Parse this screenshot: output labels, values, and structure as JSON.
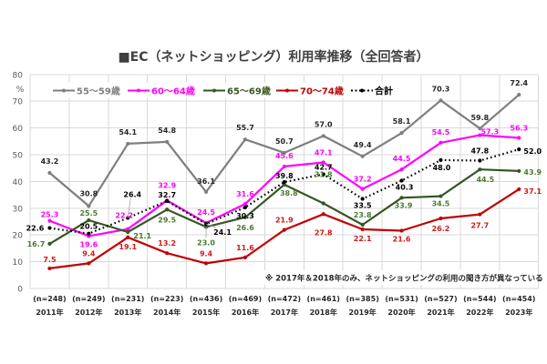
{
  "chart_data": {
    "type": "line",
    "title": "■EC（ネットショッピング）利用率推移（全回答者）",
    "xlabel": "",
    "ylabel": "%",
    "ylim": [
      0,
      80
    ],
    "yticks": [
      0,
      10,
      20,
      30,
      40,
      50,
      60,
      70,
      80
    ],
    "grid": true,
    "legend": "top-left",
    "categories": [
      "2011年",
      "2012年",
      "2013年",
      "2014年",
      "2015年",
      "2016年",
      "2017年",
      "2018年",
      "2019年",
      "2020年",
      "2021年",
      "2022年",
      "2023年"
    ],
    "sample_sizes": [
      "(n=248)",
      "(n=249)",
      "(n=231)",
      "(n=223)",
      "(n=436)",
      "(n=469)",
      "(n=472)",
      "(n=461)",
      "(n=385)",
      "(n=531)",
      "(n=527)",
      "(n=544)",
      "(n=454)"
    ],
    "series": [
      {
        "name": "55～59歳",
        "color": "#7F7F7F",
        "label_color": "#262626",
        "legend_color": "#7F7F7F",
        "style": "solid",
        "values": [
          43.2,
          30.8,
          54.1,
          54.8,
          36.1,
          55.7,
          50.7,
          57.0,
          49.4,
          58.1,
          70.3,
          59.8,
          72.4
        ],
        "labels": [
          "43.2",
          "30.8",
          "54.1",
          "54.8",
          "36.1",
          "55.7",
          "50.7",
          "57.0",
          "49.4",
          "58.1",
          "70.3",
          "59.8",
          "72.4"
        ]
      },
      {
        "name": "60～64歳",
        "color": "#FF00FF",
        "label_color": "#FF00FF",
        "legend_color": "#FF00FF",
        "style": "solid",
        "values": [
          25.3,
          19.6,
          22.2,
          32.9,
          24.5,
          31.6,
          45.6,
          47.1,
          37.2,
          44.5,
          54.5,
          57.3,
          56.3
        ],
        "labels": [
          "25.3",
          "19.6",
          "22.2",
          "32.9",
          "24.5",
          "31.6",
          "45.6",
          "47.1",
          "37.2",
          "44.5",
          "54.5",
          "57.3",
          "56.3"
        ]
      },
      {
        "name": "65～69歳",
        "color": "#375623",
        "label_color": "#4A7A32",
        "legend_color": "#375623",
        "style": "solid",
        "values": [
          16.7,
          25.5,
          21.1,
          29.5,
          23.0,
          26.6,
          38.8,
          31.8,
          23.8,
          33.9,
          34.5,
          44.5,
          43.9
        ],
        "labels": [
          "16.7",
          "25.5",
          "21.1",
          "29.5",
          "23.0",
          "26.6",
          "38.8",
          "31.8",
          "23.8",
          "33.9",
          "34.5",
          "44.5",
          "43.9"
        ]
      },
      {
        "name": "70～74歳",
        "color": "#C00000",
        "label_color": "#D01818",
        "legend_color": "#C00000",
        "style": "solid",
        "values": [
          7.5,
          9.4,
          19.1,
          13.2,
          9.4,
          11.6,
          21.9,
          27.8,
          22.1,
          21.6,
          26.2,
          27.7,
          37.1
        ],
        "labels": [
          "7.5",
          "9.4",
          "19.1",
          "13.2",
          "9.4",
          "11.6",
          "21.9",
          "27.8",
          "22.1",
          "21.6",
          "26.2",
          "27.7",
          "37.1"
        ]
      },
      {
        "name": "合計",
        "color": "#000000",
        "label_color": "#000000",
        "legend_color": "#000000",
        "style": "dotted",
        "values": [
          22.6,
          20.5,
          26.4,
          32.7,
          24.1,
          30.3,
          39.8,
          42.7,
          33.5,
          40.3,
          48.0,
          47.8,
          52.0
        ],
        "labels": [
          "22.6",
          "20.5",
          "26.4",
          "32.7",
          "24.1",
          "30.3",
          "39.8",
          "42.7",
          "33.5",
          "40.3",
          "48.0",
          "47.8",
          "52.0"
        ]
      }
    ],
    "annotation": "※ 2017年＆2018年のみ、ネットショッピングの利用の聞き方が異なっている"
  }
}
